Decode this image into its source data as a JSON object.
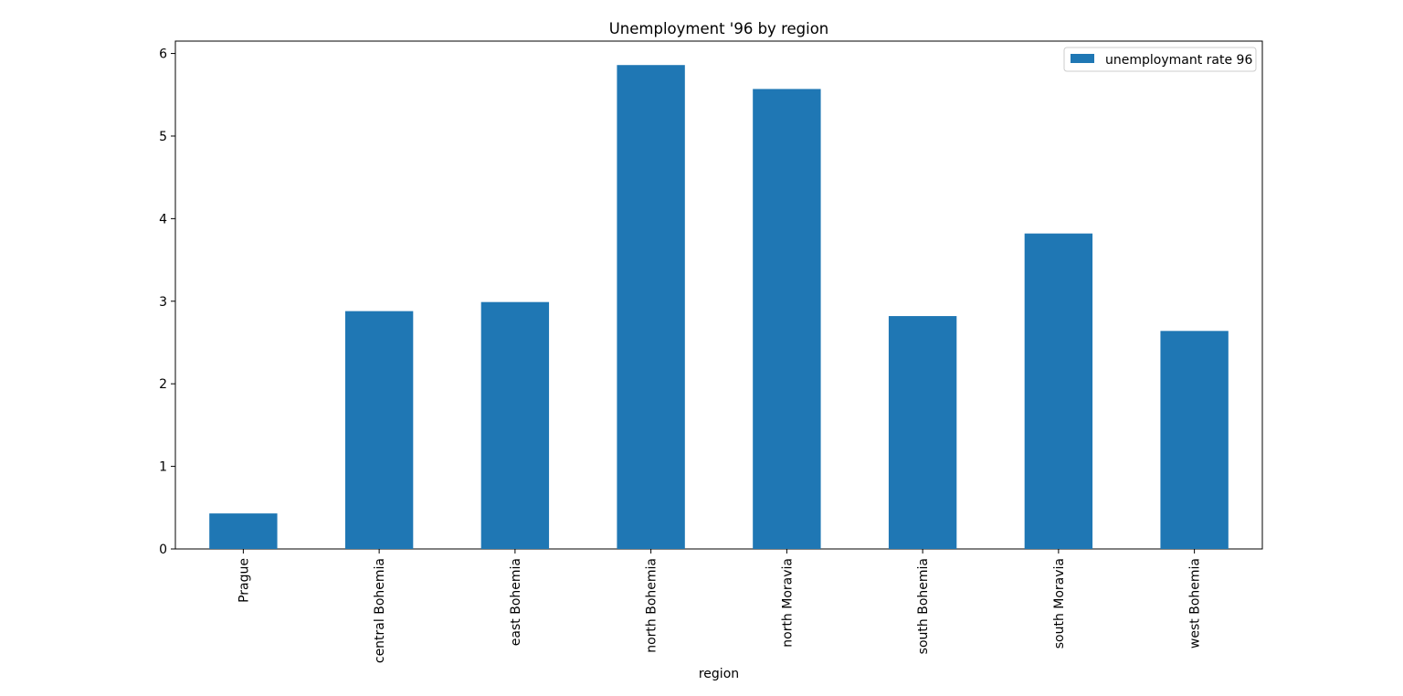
{
  "chart_data": {
    "type": "bar",
    "title": "Unemployment '96 by region",
    "xlabel": "region",
    "ylabel": "",
    "categories": [
      "Prague",
      "central Bohemia",
      "east Bohemia",
      "north Bohemia",
      "north Moravia",
      "south Bohemia",
      "south Moravia",
      "west Bohemia"
    ],
    "series": [
      {
        "name": "unemploymant rate 96",
        "values": [
          0.43,
          2.88,
          2.99,
          5.86,
          5.57,
          2.82,
          3.82,
          2.64
        ],
        "color": "#1f77b4"
      }
    ],
    "ylim": [
      0,
      6.15
    ],
    "yticks": [
      0,
      1,
      2,
      3,
      4,
      5,
      6
    ],
    "grid": false,
    "legend_position": "top-right"
  }
}
